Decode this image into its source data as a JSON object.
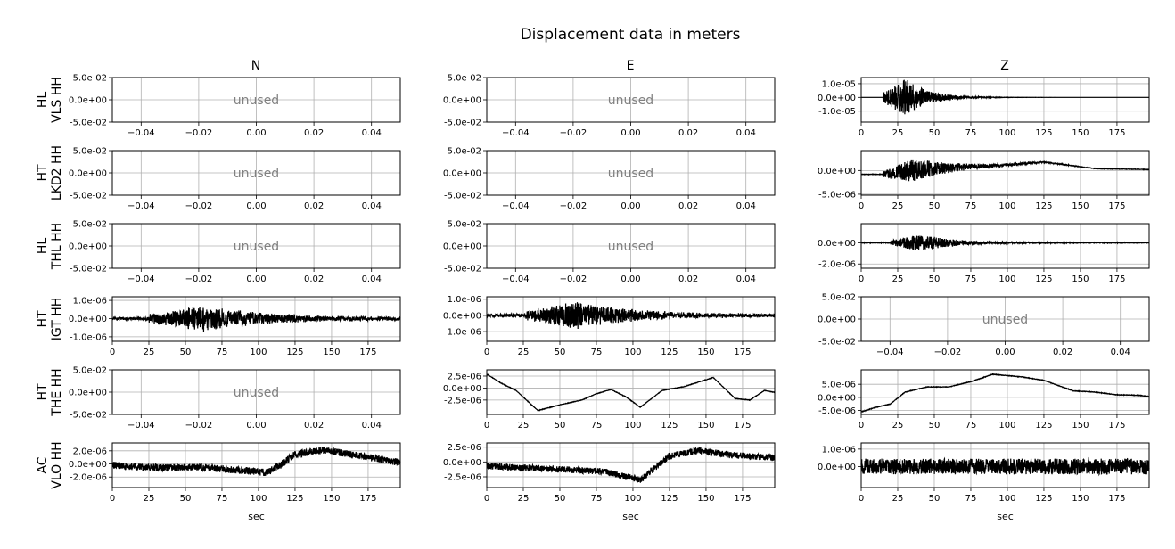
{
  "chart_data": {
    "type": "line",
    "title": "Displacement data in meters",
    "column_titles": [
      "N",
      "E",
      "Z"
    ],
    "row_labels": [
      [
        "HL",
        "VLS HH"
      ],
      [
        "HT",
        "LKD2 HH"
      ],
      [
        "HL",
        "THL HH"
      ],
      [
        "HT",
        "IGT HH"
      ],
      [
        "HT",
        "THE HH"
      ],
      [
        "AC",
        "VLO HH"
      ]
    ],
    "xlabel": "sec",
    "unused_label": "unused",
    "unused_xticks": [
      "−0.04",
      "−0.02",
      "0.00",
      "0.02",
      "0.04"
    ],
    "unused_yticks": [
      "5.0e-02",
      "0.0e+00",
      "-5.0e-02"
    ],
    "time_xticks": [
      "0",
      "25",
      "50",
      "75",
      "100",
      "125",
      "150",
      "175"
    ],
    "time_xlim": [
      0,
      197
    ],
    "panels": [
      [
        {
          "unused": true
        },
        {
          "unused": true
        },
        {
          "unused": false,
          "ylim": [
            -1.8e-05,
            1.45e-05
          ],
          "yticks": [
            1e-05,
            0,
            -1e-05
          ],
          "ytick_labels": [
            "1.0e-05",
            "0.0e+00",
            "-1.0e-05"
          ],
          "amp": 1.4e-05,
          "onset": 15,
          "peak": 31,
          "decay": 15,
          "base": [
            [
              0,
              0
            ],
            [
              197,
              0
            ]
          ],
          "noise": 0
        }
      ],
      [
        {
          "unused": true
        },
        {
          "unused": true
        },
        {
          "unused": false,
          "ylim": [
            -5.2e-06,
            4.2e-06
          ],
          "yticks": [
            0,
            -5e-06
          ],
          "ytick_labels": [
            "0.0e+00",
            "-5.0e-06"
          ],
          "amp": 2.5e-06,
          "onset": 15,
          "peak": 35,
          "decay": 30,
          "base": [
            [
              0,
              -8e-07
            ],
            [
              15,
              -8e-07
            ],
            [
              40,
              2e-07
            ],
            [
              100,
              1.2e-06
            ],
            [
              125,
              1.8e-06
            ],
            [
              160,
              4e-07
            ],
            [
              197,
              2e-07
            ]
          ],
          "noise": 5e-08
        }
      ],
      [
        {
          "unused": true
        },
        {
          "unused": true
        },
        {
          "unused": false,
          "ylim": [
            -2.4e-06,
            1.8e-06
          ],
          "yticks": [
            0,
            -2e-06
          ],
          "ytick_labels": [
            "0.0e+00",
            "-2.0e-06"
          ],
          "amp": 8e-07,
          "onset": 20,
          "peak": 40,
          "decay": 25,
          "base": [
            [
              0,
              0
            ],
            [
              197,
              0
            ]
          ],
          "noise": 3e-08
        }
      ],
      [
        {
          "unused": false,
          "ylim": [
            -1.25e-06,
            1.2e-06
          ],
          "yticks": [
            1e-06,
            0,
            -1e-06
          ],
          "ytick_labels": [
            "1.0e-06",
            "0.0e+00",
            "-1.0e-06"
          ],
          "amp": 7e-07,
          "onset": 25,
          "peak": 62,
          "decay": 45,
          "base": [
            [
              0,
              0
            ],
            [
              197,
              0
            ]
          ],
          "noise": 8e-08
        },
        {
          "unused": false,
          "ylim": [
            -1.6e-06,
            1.15e-06
          ],
          "yticks": [
            1e-06,
            0,
            -1e-06
          ],
          "ytick_labels": [
            "1.0e-06",
            "0.0e+00",
            "-1.0e-06"
          ],
          "amp": 8e-07,
          "onset": 25,
          "peak": 62,
          "decay": 40,
          "base": [
            [
              0,
              0
            ],
            [
              197,
              0
            ]
          ],
          "noise": 1e-07
        },
        {
          "unused": true
        }
      ],
      [
        {
          "unused": true
        },
        {
          "unused": false,
          "ylim": [
            -5.5e-06,
            3.8e-06
          ],
          "yticks": [
            2.5e-06,
            0,
            -2.5e-06
          ],
          "ytick_labels": [
            "2.5e-06",
            "0.0e+00",
            "-2.5e-06"
          ],
          "amp": 0,
          "onset": 0,
          "peak": 0,
          "decay": 1,
          "base": [
            [
              0,
              2.9e-06
            ],
            [
              10,
              1e-06
            ],
            [
              20,
              -5e-07
            ],
            [
              35,
              -4.7e-06
            ],
            [
              50,
              -3.5e-06
            ],
            [
              65,
              -2.5e-06
            ],
            [
              75,
              -1.2e-06
            ],
            [
              85,
              -3e-07
            ],
            [
              95,
              -1.8e-06
            ],
            [
              105,
              -4e-06
            ],
            [
              120,
              -5e-07
            ],
            [
              135,
              3e-07
            ],
            [
              155,
              2.2e-06
            ],
            [
              170,
              -2.2e-06
            ],
            [
              180,
              -2.5e-06
            ],
            [
              190,
              -5e-07
            ],
            [
              197,
              -9e-07
            ]
          ],
          "noise": 5e-08
        },
        {
          "unused": false,
          "ylim": [
            -6.5e-06,
            1.05e-05
          ],
          "yticks": [
            5e-06,
            0,
            -5e-06
          ],
          "ytick_labels": [
            "5.0e-06",
            "0.0e+00",
            "-5.0e-06"
          ],
          "amp": 0,
          "onset": 0,
          "peak": 0,
          "decay": 1,
          "base": [
            [
              0,
              -5.5e-06
            ],
            [
              10,
              -3.8e-06
            ],
            [
              20,
              -2.5e-06
            ],
            [
              30,
              2e-06
            ],
            [
              45,
              4e-06
            ],
            [
              60,
              4e-06
            ],
            [
              75,
              6e-06
            ],
            [
              90,
              8.8e-06
            ],
            [
              110,
              7.8e-06
            ],
            [
              125,
              6.5e-06
            ],
            [
              145,
              2.5e-06
            ],
            [
              160,
              2e-06
            ],
            [
              175,
              1e-06
            ],
            [
              190,
              8e-07
            ],
            [
              197,
              3e-07
            ]
          ],
          "noise": 1e-07
        }
      ],
      [
        {
          "unused": false,
          "ylim": [
            -3.6e-06,
            3.2e-06
          ],
          "yticks": [
            2e-06,
            0,
            -2e-06
          ],
          "ytick_labels": [
            "2.0e-06",
            "0.0e+00",
            "-2.0e-06"
          ],
          "amp": 0,
          "onset": 0,
          "peak": 0,
          "decay": 1,
          "base": [
            [
              0,
              -2e-07
            ],
            [
              30,
              -6e-07
            ],
            [
              60,
              -5e-07
            ],
            [
              90,
              -1e-06
            ],
            [
              105,
              -1.3e-06
            ],
            [
              115,
              -2e-07
            ],
            [
              125,
              1.5e-06
            ],
            [
              145,
              2.1e-06
            ],
            [
              165,
              1.4e-06
            ],
            [
              197,
              2e-07
            ]
          ],
          "noise": 5.5e-07
        },
        {
          "unused": false,
          "ylim": [
            -4.3e-06,
            3.2e-06
          ],
          "yticks": [
            2.5e-06,
            0,
            -2.5e-06
          ],
          "ytick_labels": [
            "2.5e-06",
            "0.0e+00",
            "-2.5e-06"
          ],
          "amp": 0,
          "onset": 0,
          "peak": 0,
          "decay": 1,
          "base": [
            [
              0,
              -7e-07
            ],
            [
              40,
              -1.1e-06
            ],
            [
              80,
              -1.6e-06
            ],
            [
              105,
              -3e-06
            ],
            [
              115,
              -1e-06
            ],
            [
              125,
              1e-06
            ],
            [
              145,
              2e-06
            ],
            [
              165,
              1.2e-06
            ],
            [
              197,
              7e-07
            ]
          ],
          "noise": 5.5e-07
        },
        {
          "unused": false,
          "ylim": [
            -1.2e-06,
            1.35e-06
          ],
          "yticks": [
            1e-06,
            0
          ],
          "ytick_labels": [
            "1.0e-06",
            "0.0e+00"
          ],
          "amp": 0,
          "onset": 0,
          "peak": 0,
          "decay": 1,
          "base": [
            [
              0,
              0
            ],
            [
              197,
              0
            ]
          ],
          "noise": 4.5e-07
        }
      ]
    ]
  }
}
